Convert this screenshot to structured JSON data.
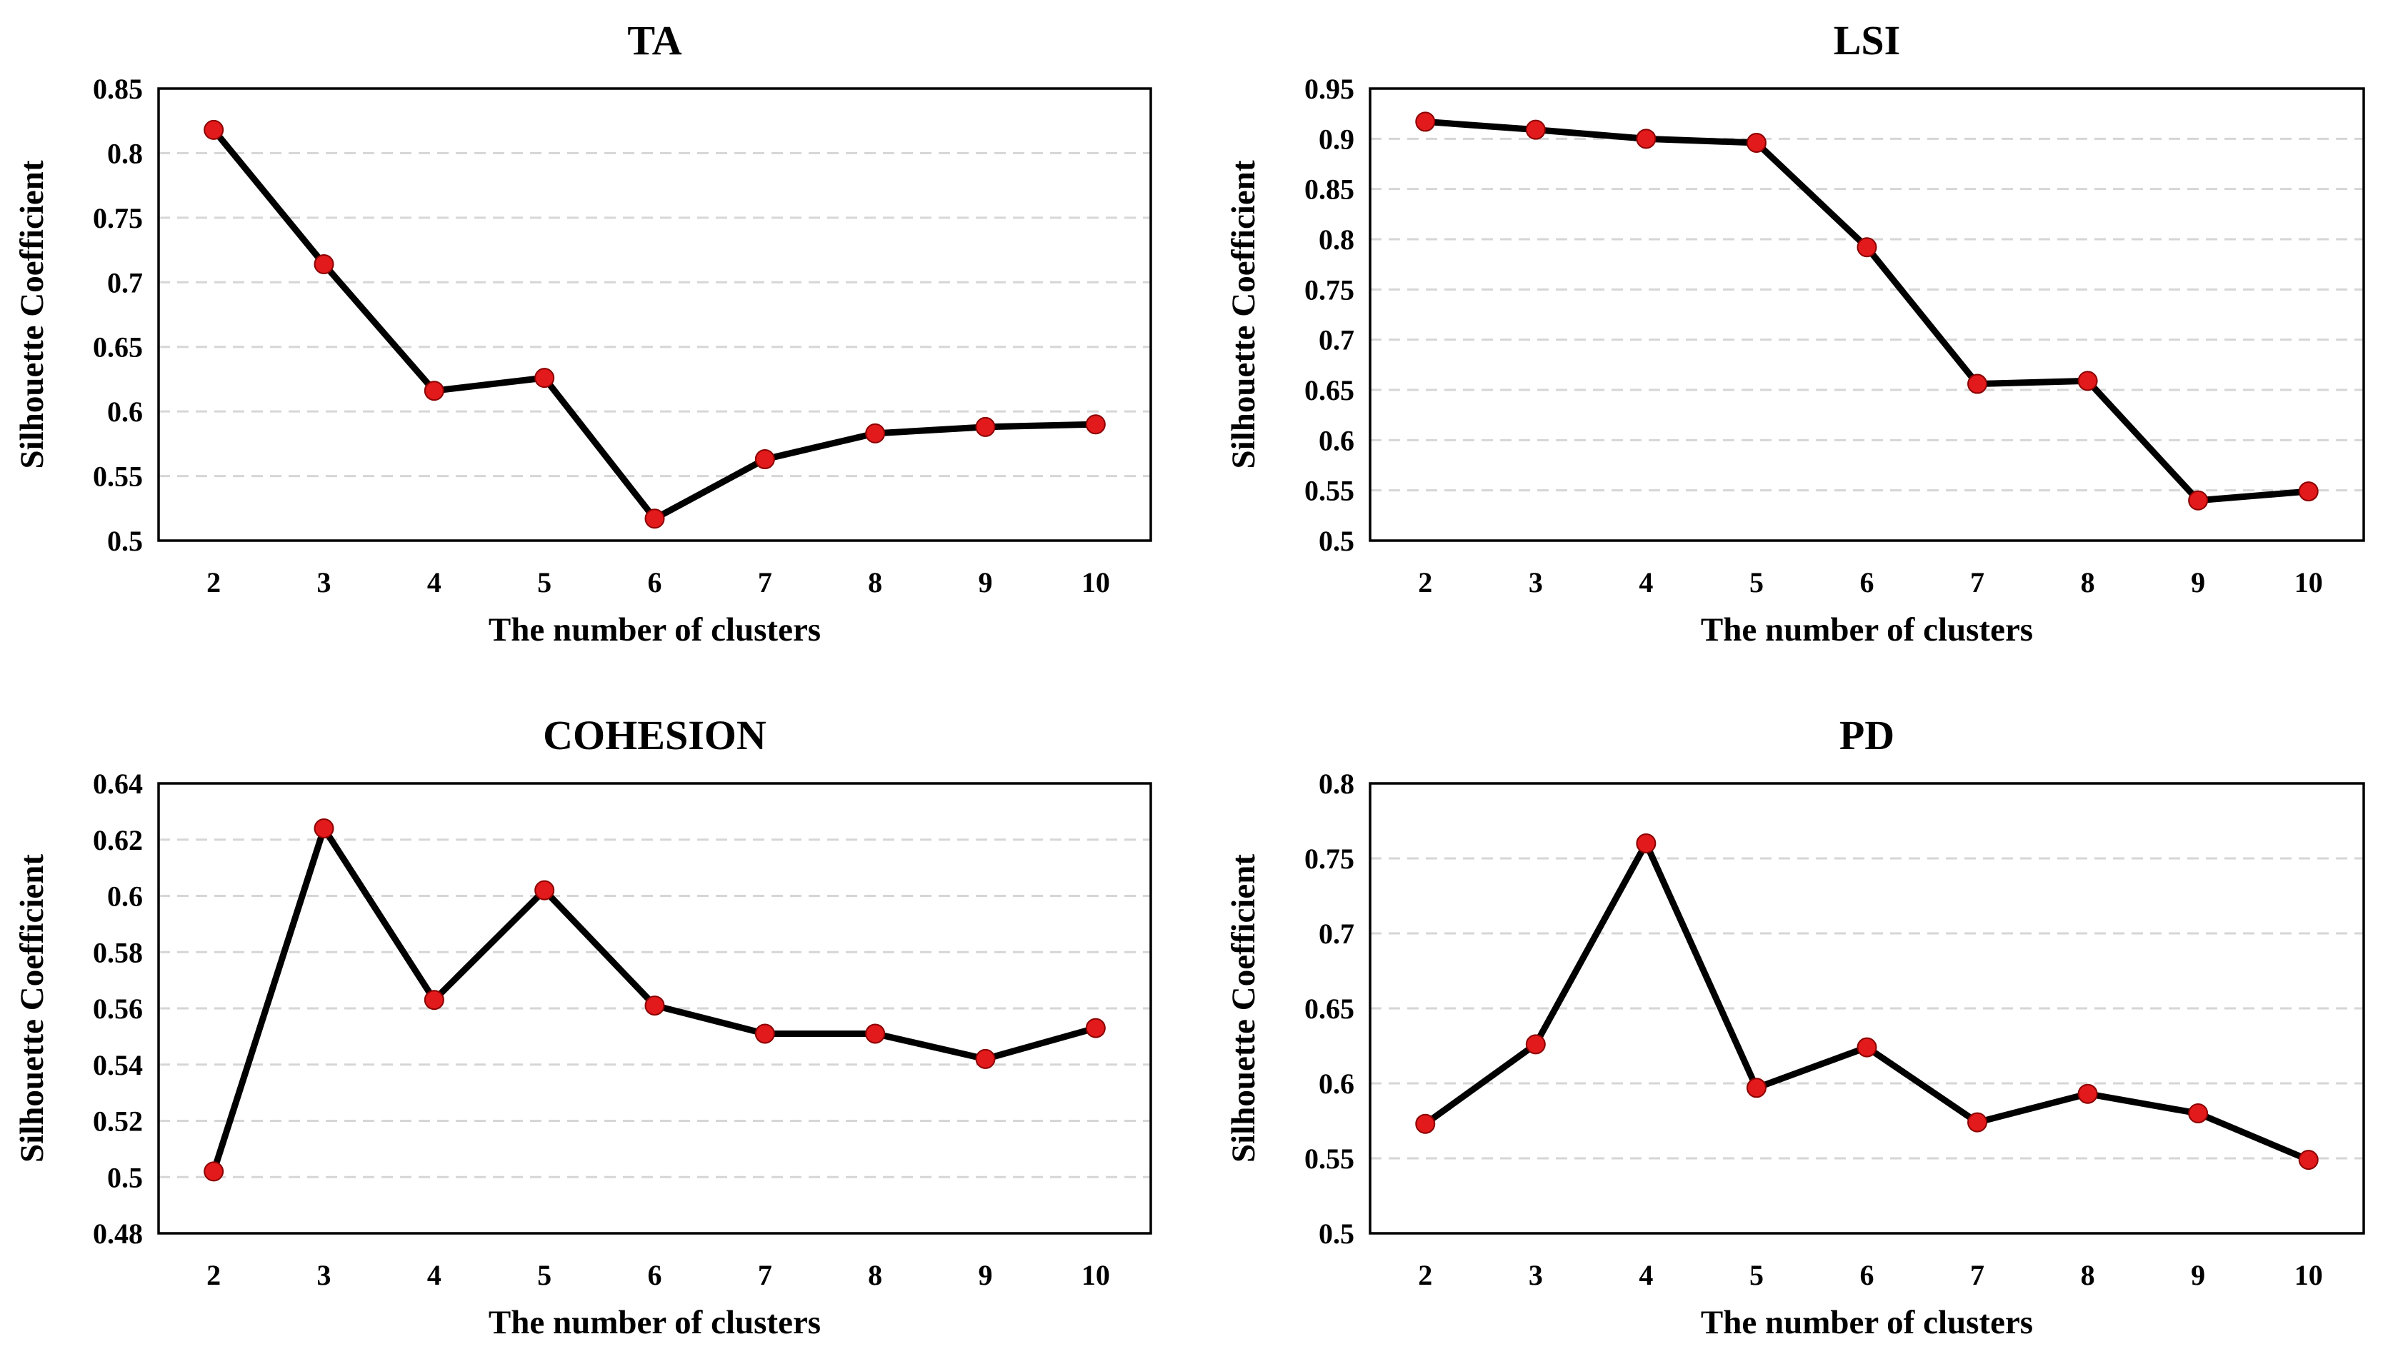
{
  "colors": {
    "line": "#000000",
    "marker": "#e31a1c",
    "grid": "#d6d6d6"
  },
  "chart_data": [
    {
      "id": "ta",
      "type": "line",
      "title": "TA",
      "xlabel": "The number of clusters",
      "ylabel": "Silhouette Coefficient",
      "categories": [
        "2",
        "3",
        "4",
        "5",
        "6",
        "7",
        "8",
        "9",
        "10"
      ],
      "series": [
        {
          "name": "TA",
          "values": [
            0.818,
            0.714,
            0.616,
            0.626,
            0.517,
            0.563,
            0.583,
            0.588,
            0.59
          ]
        }
      ],
      "ylim": [
        0.5,
        0.85
      ],
      "yticks": [
        0.5,
        0.55,
        0.6,
        0.65,
        0.7,
        0.75,
        0.8,
        0.85
      ],
      "ytick_labels": [
        "0.5",
        "0.55",
        "0.6",
        "0.65",
        "0.7",
        "0.75",
        "0.8",
        "0.85"
      ],
      "grid": true
    },
    {
      "id": "lsi",
      "type": "line",
      "title": "LSI",
      "xlabel": "The number of clusters",
      "ylabel": "Silhouette Coefficient",
      "categories": [
        "2",
        "3",
        "4",
        "5",
        "6",
        "7",
        "8",
        "9",
        "10"
      ],
      "series": [
        {
          "name": "LSI",
          "values": [
            0.917,
            0.909,
            0.9,
            0.896,
            0.792,
            0.656,
            0.659,
            0.54,
            0.549
          ]
        }
      ],
      "ylim": [
        0.5,
        0.95
      ],
      "yticks": [
        0.5,
        0.55,
        0.6,
        0.65,
        0.7,
        0.75,
        0.8,
        0.85,
        0.9,
        0.95
      ],
      "ytick_labels": [
        "0.5",
        "0.55",
        "0.6",
        "0.65",
        "0.7",
        "0.75",
        "0.8",
        "0.85",
        "0.9",
        "0.95"
      ],
      "grid": true
    },
    {
      "id": "cohesion",
      "type": "line",
      "title": "COHESION",
      "xlabel": "The number of clusters",
      "ylabel": "Silhouette Coefficient",
      "categories": [
        "2",
        "3",
        "4",
        "5",
        "6",
        "7",
        "8",
        "9",
        "10"
      ],
      "series": [
        {
          "name": "COHESION",
          "values": [
            0.502,
            0.624,
            0.563,
            0.602,
            0.561,
            0.551,
            0.551,
            0.542,
            0.553
          ]
        }
      ],
      "ylim": [
        0.48,
        0.64
      ],
      "yticks": [
        0.48,
        0.5,
        0.52,
        0.54,
        0.56,
        0.58,
        0.6,
        0.62,
        0.64
      ],
      "ytick_labels": [
        "0.48",
        "0.5",
        "0.52",
        "0.54",
        "0.56",
        "0.58",
        "0.6",
        "0.62",
        "0.64"
      ],
      "grid": true
    },
    {
      "id": "pd",
      "type": "line",
      "title": "PD",
      "xlabel": "The number of clusters",
      "ylabel": "Silhouette Coefficient",
      "categories": [
        "2",
        "3",
        "4",
        "5",
        "6",
        "7",
        "8",
        "9",
        "10"
      ],
      "series": [
        {
          "name": "PD",
          "values": [
            0.573,
            0.626,
            0.76,
            0.597,
            0.624,
            0.574,
            0.593,
            0.58,
            0.549
          ]
        }
      ],
      "ylim": [
        0.5,
        0.8
      ],
      "yticks": [
        0.5,
        0.55,
        0.6,
        0.65,
        0.7,
        0.75,
        0.8
      ],
      "ytick_labels": [
        "0.5",
        "0.55",
        "0.6",
        "0.65",
        "0.7",
        "0.75",
        "0.8"
      ],
      "grid": true
    }
  ]
}
